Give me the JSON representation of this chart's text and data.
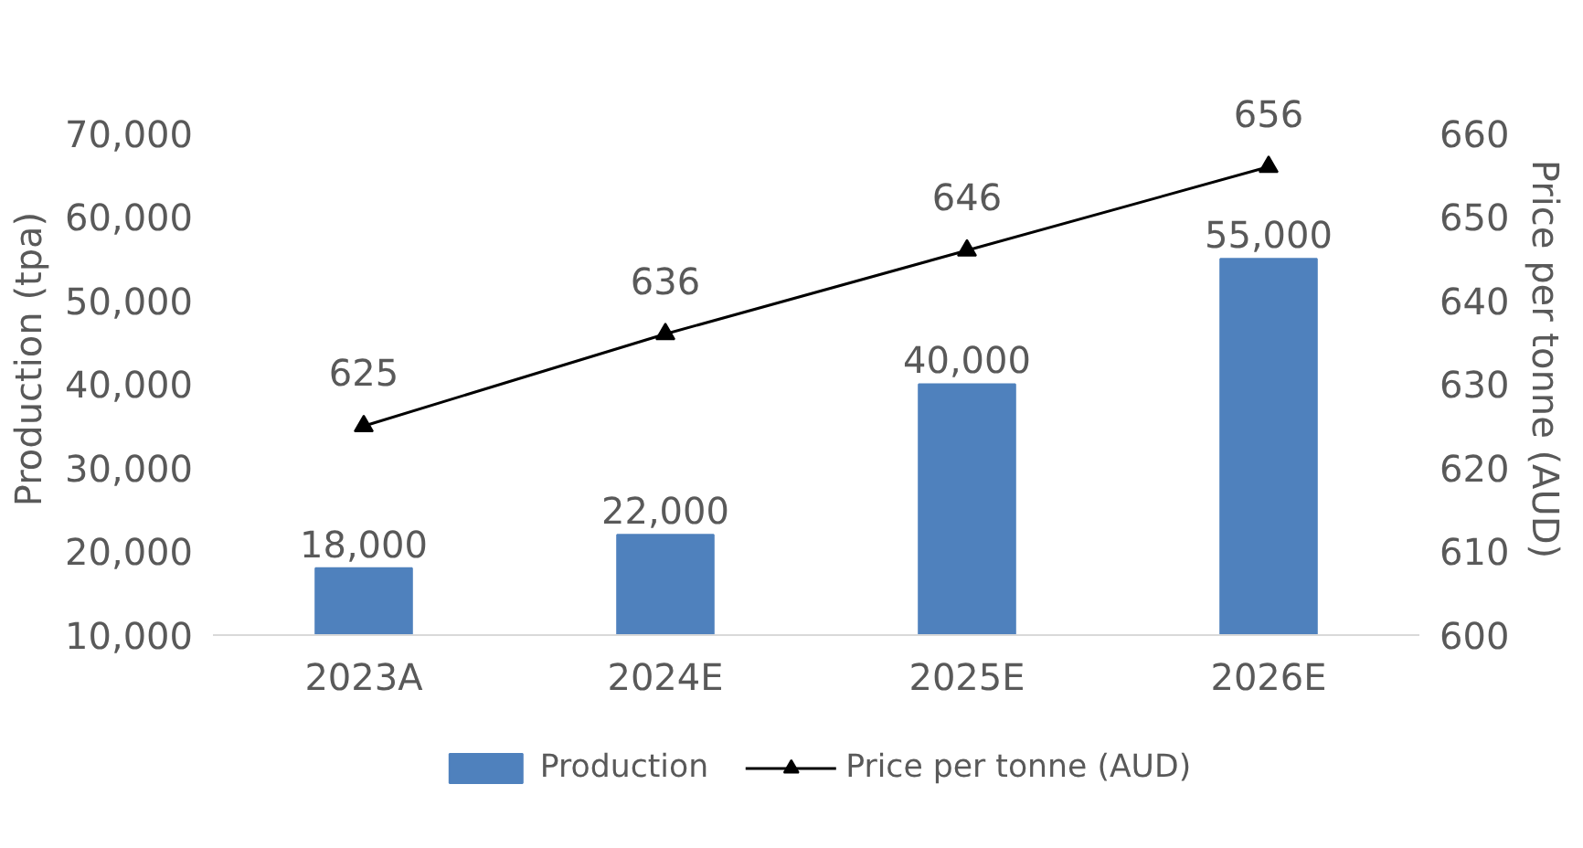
{
  "chart_data": {
    "type": "bar",
    "categories": [
      "2023A",
      "2024E",
      "2025E",
      "2026E"
    ],
    "ylabel": "Production (tpa)",
    "y2label": "Price per tonne (AUD)",
    "series": [
      {
        "name": "Production",
        "color": "#4f81bd",
        "values": [
          18000,
          22000,
          40000,
          55000
        ],
        "value_labels": [
          "18,000",
          "22,000",
          "40,000",
          "55,000"
        ]
      },
      {
        "name": "Price per tonne (AUD)",
        "type": "line",
        "axis": "y2",
        "color": "#000000",
        "marker": "triangle",
        "values": [
          625,
          636,
          646,
          656
        ],
        "value_labels": [
          "625",
          "636",
          "646",
          "656"
        ]
      }
    ],
    "ylim": [
      10000,
      70000
    ],
    "yticks": [
      {
        "value": 10000,
        "label": "10,000"
      },
      {
        "value": 20000,
        "label": "20,000"
      },
      {
        "value": 30000,
        "label": "30,000"
      },
      {
        "value": 40000,
        "label": "40,000"
      },
      {
        "value": 50000,
        "label": "50,000"
      },
      {
        "value": 60000,
        "label": "60,000"
      },
      {
        "value": 70000,
        "label": "70,000"
      }
    ],
    "y2lim": [
      600,
      660
    ],
    "y2ticks": [
      600,
      610,
      620,
      630,
      640,
      650,
      660
    ],
    "grid": false,
    "legend": "bottom"
  }
}
